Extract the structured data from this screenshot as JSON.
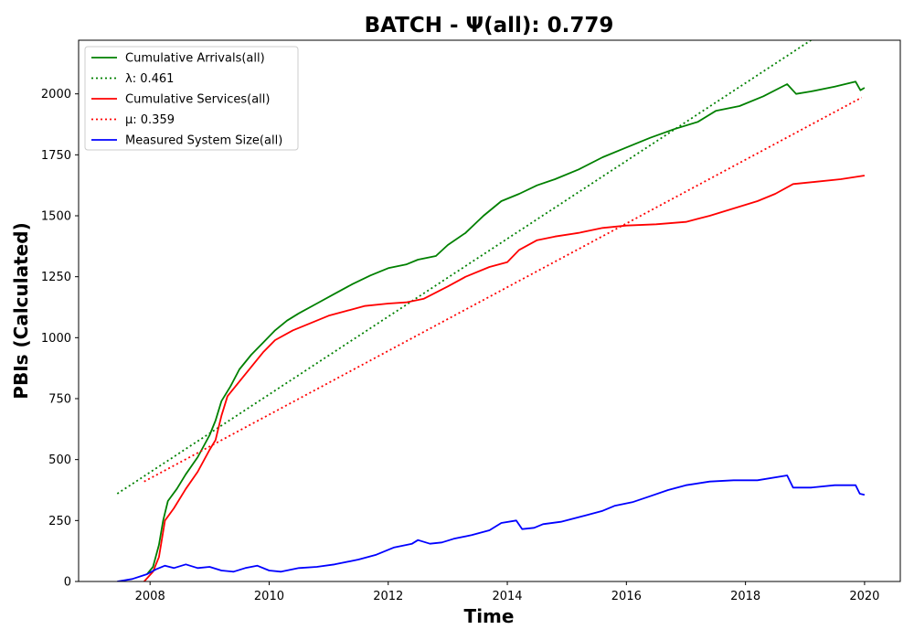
{
  "chart_data": {
    "type": "line",
    "title": "BATCH -  Ψ(all): 0.779",
    "xlabel": "Time",
    "ylabel": "PBIs (Calculated)",
    "xlim": [
      2006.8,
      2020.6
    ],
    "ylim": [
      0,
      2220
    ],
    "xticks": [
      2008,
      2010,
      2012,
      2014,
      2016,
      2018,
      2020
    ],
    "yticks": [
      0,
      250,
      500,
      750,
      1000,
      1250,
      1500,
      1750,
      2000
    ],
    "grid": false,
    "legend_position": "top-left",
    "series": [
      {
        "name": "Cumulative Arrivals(all)",
        "style": "solid",
        "color": "#008000",
        "points": [
          [
            2007.95,
            30
          ],
          [
            2008.05,
            60
          ],
          [
            2008.15,
            150
          ],
          [
            2008.22,
            250
          ],
          [
            2008.3,
            330
          ],
          [
            2008.45,
            380
          ],
          [
            2008.6,
            440
          ],
          [
            2008.8,
            510
          ],
          [
            2009.0,
            600
          ],
          [
            2009.1,
            660
          ],
          [
            2009.2,
            740
          ],
          [
            2009.35,
            800
          ],
          [
            2009.5,
            870
          ],
          [
            2009.7,
            930
          ],
          [
            2009.9,
            980
          ],
          [
            2010.1,
            1030
          ],
          [
            2010.3,
            1070
          ],
          [
            2010.5,
            1100
          ],
          [
            2010.8,
            1140
          ],
          [
            2011.1,
            1180
          ],
          [
            2011.4,
            1220
          ],
          [
            2011.7,
            1255
          ],
          [
            2012.0,
            1285
          ],
          [
            2012.3,
            1300
          ],
          [
            2012.5,
            1320
          ],
          [
            2012.8,
            1335
          ],
          [
            2013.0,
            1380
          ],
          [
            2013.3,
            1430
          ],
          [
            2013.6,
            1500
          ],
          [
            2013.9,
            1560
          ],
          [
            2014.2,
            1590
          ],
          [
            2014.5,
            1625
          ],
          [
            2014.8,
            1650
          ],
          [
            2015.2,
            1690
          ],
          [
            2015.6,
            1740
          ],
          [
            2016.0,
            1780
          ],
          [
            2016.4,
            1820
          ],
          [
            2016.8,
            1855
          ],
          [
            2017.2,
            1885
          ],
          [
            2017.5,
            1930
          ],
          [
            2017.9,
            1950
          ],
          [
            2018.3,
            1990
          ],
          [
            2018.7,
            2040
          ],
          [
            2018.85,
            2000
          ],
          [
            2019.1,
            2010
          ],
          [
            2019.5,
            2030
          ],
          [
            2019.85,
            2050
          ],
          [
            2019.93,
            2015
          ],
          [
            2020.0,
            2025
          ]
        ]
      },
      {
        "name": "λ: 0.461",
        "style": "dotted",
        "color": "#008000",
        "points": [
          [
            2007.45,
            360
          ],
          [
            2019.1,
            2220
          ]
        ]
      },
      {
        "name": "Cumulative Services(all)",
        "style": "solid",
        "color": "#ff0000",
        "points": [
          [
            2007.9,
            0
          ],
          [
            2008.05,
            40
          ],
          [
            2008.15,
            100
          ],
          [
            2008.25,
            250
          ],
          [
            2008.4,
            300
          ],
          [
            2008.6,
            380
          ],
          [
            2008.8,
            450
          ],
          [
            2009.0,
            540
          ],
          [
            2009.1,
            580
          ],
          [
            2009.2,
            680
          ],
          [
            2009.3,
            760
          ],
          [
            2009.5,
            820
          ],
          [
            2009.7,
            880
          ],
          [
            2009.9,
            940
          ],
          [
            2010.1,
            990
          ],
          [
            2010.4,
            1030
          ],
          [
            2010.7,
            1060
          ],
          [
            2011.0,
            1090
          ],
          [
            2011.3,
            1110
          ],
          [
            2011.6,
            1130
          ],
          [
            2012.0,
            1140
          ],
          [
            2012.3,
            1145
          ],
          [
            2012.6,
            1160
          ],
          [
            2013.0,
            1210
          ],
          [
            2013.3,
            1250
          ],
          [
            2013.7,
            1290
          ],
          [
            2014.0,
            1310
          ],
          [
            2014.2,
            1360
          ],
          [
            2014.5,
            1400
          ],
          [
            2014.8,
            1415
          ],
          [
            2015.2,
            1430
          ],
          [
            2015.6,
            1450
          ],
          [
            2016.0,
            1460
          ],
          [
            2016.5,
            1465
          ],
          [
            2017.0,
            1475
          ],
          [
            2017.4,
            1500
          ],
          [
            2017.8,
            1530
          ],
          [
            2018.2,
            1560
          ],
          [
            2018.5,
            1590
          ],
          [
            2018.8,
            1630
          ],
          [
            2019.2,
            1640
          ],
          [
            2019.6,
            1650
          ],
          [
            2020.0,
            1665
          ]
        ]
      },
      {
        "name": "μ: 0.359",
        "style": "dotted",
        "color": "#ff0000",
        "points": [
          [
            2007.9,
            410
          ],
          [
            2019.95,
            1985
          ]
        ]
      },
      {
        "name": "Measured System Size(all)",
        "style": "solid",
        "color": "#0000ff",
        "points": [
          [
            2007.45,
            0
          ],
          [
            2007.7,
            10
          ],
          [
            2007.95,
            30
          ],
          [
            2008.1,
            50
          ],
          [
            2008.25,
            65
          ],
          [
            2008.4,
            55
          ],
          [
            2008.6,
            70
          ],
          [
            2008.8,
            55
          ],
          [
            2009.0,
            60
          ],
          [
            2009.2,
            45
          ],
          [
            2009.4,
            40
          ],
          [
            2009.6,
            55
          ],
          [
            2009.8,
            65
          ],
          [
            2010.0,
            45
          ],
          [
            2010.2,
            40
          ],
          [
            2010.5,
            55
          ],
          [
            2010.8,
            60
          ],
          [
            2011.1,
            70
          ],
          [
            2011.5,
            90
          ],
          [
            2011.8,
            110
          ],
          [
            2012.1,
            140
          ],
          [
            2012.4,
            155
          ],
          [
            2012.5,
            170
          ],
          [
            2012.7,
            155
          ],
          [
            2012.9,
            160
          ],
          [
            2013.1,
            175
          ],
          [
            2013.4,
            190
          ],
          [
            2013.7,
            210
          ],
          [
            2013.9,
            240
          ],
          [
            2014.15,
            250
          ],
          [
            2014.25,
            215
          ],
          [
            2014.45,
            220
          ],
          [
            2014.6,
            235
          ],
          [
            2014.9,
            245
          ],
          [
            2015.3,
            270
          ],
          [
            2015.6,
            290
          ],
          [
            2015.8,
            310
          ],
          [
            2016.1,
            325
          ],
          [
            2016.4,
            350
          ],
          [
            2016.7,
            375
          ],
          [
            2017.0,
            395
          ],
          [
            2017.4,
            410
          ],
          [
            2017.8,
            415
          ],
          [
            2018.2,
            415
          ],
          [
            2018.7,
            435
          ],
          [
            2018.8,
            385
          ],
          [
            2019.1,
            385
          ],
          [
            2019.5,
            395
          ],
          [
            2019.85,
            395
          ],
          [
            2019.92,
            360
          ],
          [
            2020.0,
            355
          ]
        ]
      }
    ]
  }
}
